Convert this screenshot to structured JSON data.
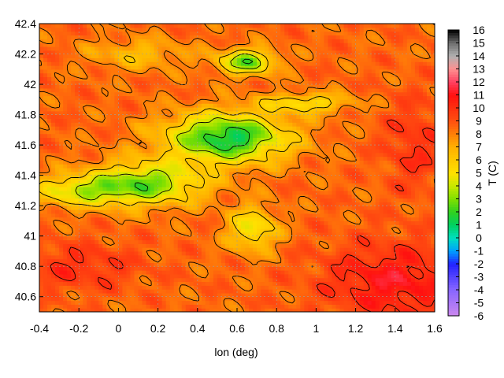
{
  "chart_data": {
    "type": "heatmap",
    "title": "",
    "xlabel": "lon (deg)",
    "ylabel": "",
    "xlim": [
      -0.4,
      1.6
    ],
    "ylim": [
      40.5,
      42.4
    ],
    "x_ticks": [
      "-0.4",
      "-0.2",
      "0",
      "0.2",
      "0.4",
      "0.6",
      "0.8",
      "1",
      "1.2",
      "1.4",
      "1.6"
    ],
    "y_ticks": [
      "40.6",
      "40.8",
      "41",
      "41.2",
      "41.4",
      "41.6",
      "41.8",
      "42",
      "42.2",
      "42.4"
    ],
    "grid": true,
    "contours": true,
    "colorbar": {
      "label": "T (C)",
      "range": [
        -6,
        16
      ],
      "ticks": [
        "-6",
        "-5",
        "-4",
        "-3",
        "-2",
        "-1",
        "0",
        "1",
        "2",
        "3",
        "4",
        "5",
        "6",
        "7",
        "8",
        "9",
        "10",
        "11",
        "12",
        "13",
        "14",
        "15",
        "16"
      ],
      "palette": [
        {
          "value": -6,
          "color": "#cc88ee"
        },
        {
          "value": -4,
          "color": "#8866ff"
        },
        {
          "value": -2,
          "color": "#2222ff"
        },
        {
          "value": -1,
          "color": "#00a0ff"
        },
        {
          "value": 0,
          "color": "#00e0c0"
        },
        {
          "value": 1,
          "color": "#00d060"
        },
        {
          "value": 2,
          "color": "#30d020"
        },
        {
          "value": 3,
          "color": "#80e000"
        },
        {
          "value": 4,
          "color": "#c8e800"
        },
        {
          "value": 5,
          "color": "#ffe000"
        },
        {
          "value": 7,
          "color": "#ffb000"
        },
        {
          "value": 9,
          "color": "#ff5010"
        },
        {
          "value": 11,
          "color": "#ff1010"
        },
        {
          "value": 12,
          "color": "#ff4060"
        },
        {
          "value": 13,
          "color": "#ff9090"
        },
        {
          "value": 14,
          "color": "#b0b0b0"
        },
        {
          "value": 15,
          "color": "#707070"
        },
        {
          "value": 16,
          "color": "#000000"
        }
      ]
    }
  }
}
